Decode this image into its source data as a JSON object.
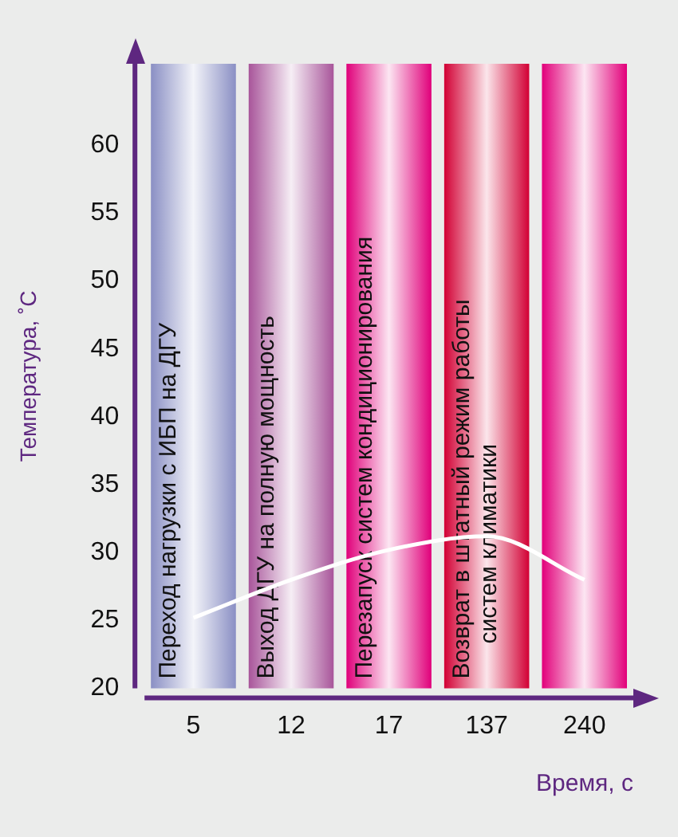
{
  "chart_data": {
    "type": "line",
    "xlabel": "Время, с",
    "ylabel": "Температура, ˚C",
    "categories": [
      "5",
      "12",
      "17",
      "137",
      "240"
    ],
    "series": [
      {
        "color": "#ffffff",
        "values": [
          25.2,
          28,
          30.2,
          31.2,
          28
        ]
      }
    ],
    "ylim": [
      20,
      66
    ],
    "yticks": [
      20,
      25,
      30,
      35,
      40,
      45,
      50,
      55,
      60
    ],
    "grid": false,
    "legend": false,
    "marker": "none",
    "line_style": "solid",
    "bands": [
      {
        "axis": "x",
        "from": "5",
        "to": "5",
        "label": "Переход нагрузки с ИБП на ДГУ",
        "color": "#8a8fc4"
      },
      {
        "axis": "x",
        "from": "12",
        "to": "12",
        "label": "Выход ДГУ на полную мощность",
        "color": "#a8559a"
      },
      {
        "axis": "x",
        "from": "17",
        "to": "17",
        "label": "Перезапуск систем кондиционирования",
        "color": "#e0007a"
      },
      {
        "axis": "x",
        "from": "137",
        "to": "137",
        "label": "Возврат в штатный режим работы\nсистем климатики",
        "color": "#d20034"
      },
      {
        "axis": "x",
        "from": "240",
        "to": "240",
        "color": "#e2007a"
      }
    ]
  }
}
